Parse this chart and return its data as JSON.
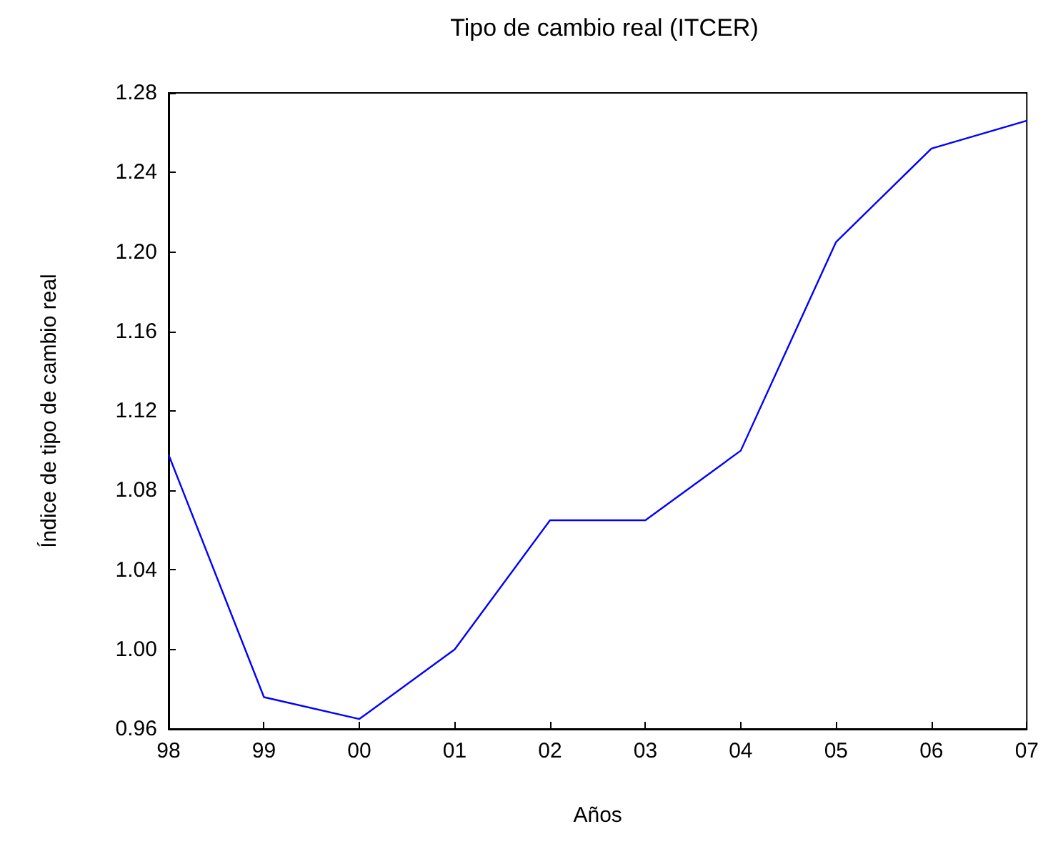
{
  "chart_data": {
    "type": "line",
    "title": "Tipo de cambio real (ITCER)",
    "xlabel": "Años",
    "ylabel": "Índice de tipo de cambio real",
    "categories": [
      "98",
      "99",
      "00",
      "01",
      "02",
      "03",
      "04",
      "05",
      "06",
      "07"
    ],
    "series": [
      {
        "color": "#0000ff",
        "values": [
          1.098,
          0.976,
          0.965,
          1.0,
          1.065,
          1.065,
          1.1,
          1.205,
          1.252,
          1.266
        ]
      }
    ],
    "ylim": [
      0.96,
      1.28
    ],
    "yticks": [
      0.96,
      {
        "value": 1.0,
        "label": "1.00"
      },
      1.04,
      1.08,
      1.12,
      1.16,
      {
        "value": 1.2,
        "label": "1.20"
      },
      1.24,
      1.28
    ],
    "grid": false,
    "marker": "none",
    "line_style": "solid"
  }
}
